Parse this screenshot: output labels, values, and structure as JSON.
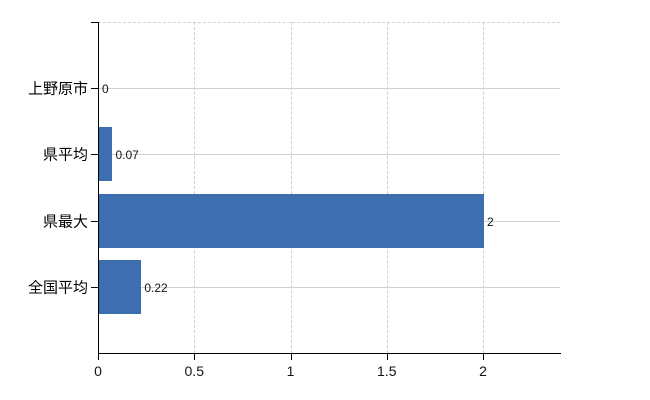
{
  "chart_data": {
    "type": "bar",
    "orientation": "horizontal",
    "title": "",
    "xlabel": "",
    "ylabel": "",
    "categories": [
      "上野原市",
      "県平均",
      "県最大",
      "全国平均"
    ],
    "values": [
      0,
      0.07,
      2,
      0.22
    ],
    "value_labels": [
      "0",
      "0.07",
      "2",
      "0.22"
    ],
    "x_ticks": [
      0,
      0.5,
      1,
      1.5,
      2
    ],
    "x_tick_labels": [
      "0",
      "0.5",
      "1",
      "1.5",
      "2"
    ],
    "xlim": [
      0,
      2.4
    ],
    "grid": "on",
    "legend": "none",
    "bar_color": "#3d6eb0",
    "grid_color": "#ccd3ca",
    "axis_color": "#000000",
    "text_color": "#141414",
    "background_color": "#ffffff"
  }
}
